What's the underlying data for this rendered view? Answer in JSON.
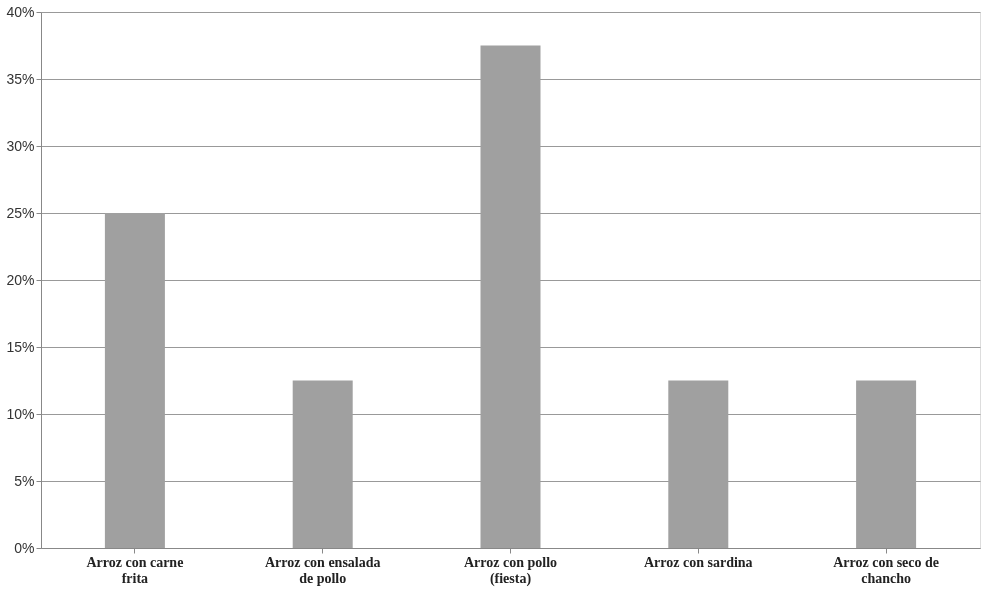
{
  "chart_data": {
    "type": "bar",
    "categories": [
      "Arroz con carne frita",
      "Arroz con ensalada de pollo",
      "Arroz con pollo (fiesta)",
      "Arroz con sardina",
      "Arroz con seco de chancho"
    ],
    "values": [
      25,
      12.5,
      37.5,
      12.5,
      12.5
    ],
    "color": "#a0a0a0",
    "ylim": [
      0,
      40
    ],
    "yticks": [
      {
        "value": 0,
        "label": "0%"
      },
      {
        "value": 5,
        "label": "5%"
      },
      {
        "value": 10,
        "label": "10%"
      },
      {
        "value": 15,
        "label": "15%"
      },
      {
        "value": 20,
        "label": "20%"
      },
      {
        "value": 25,
        "label": "25%"
      },
      {
        "value": 30,
        "label": "30%"
      },
      {
        "value": 35,
        "label": "35%"
      },
      {
        "value": 40,
        "label": "40%"
      }
    ],
    "grid": "y"
  }
}
